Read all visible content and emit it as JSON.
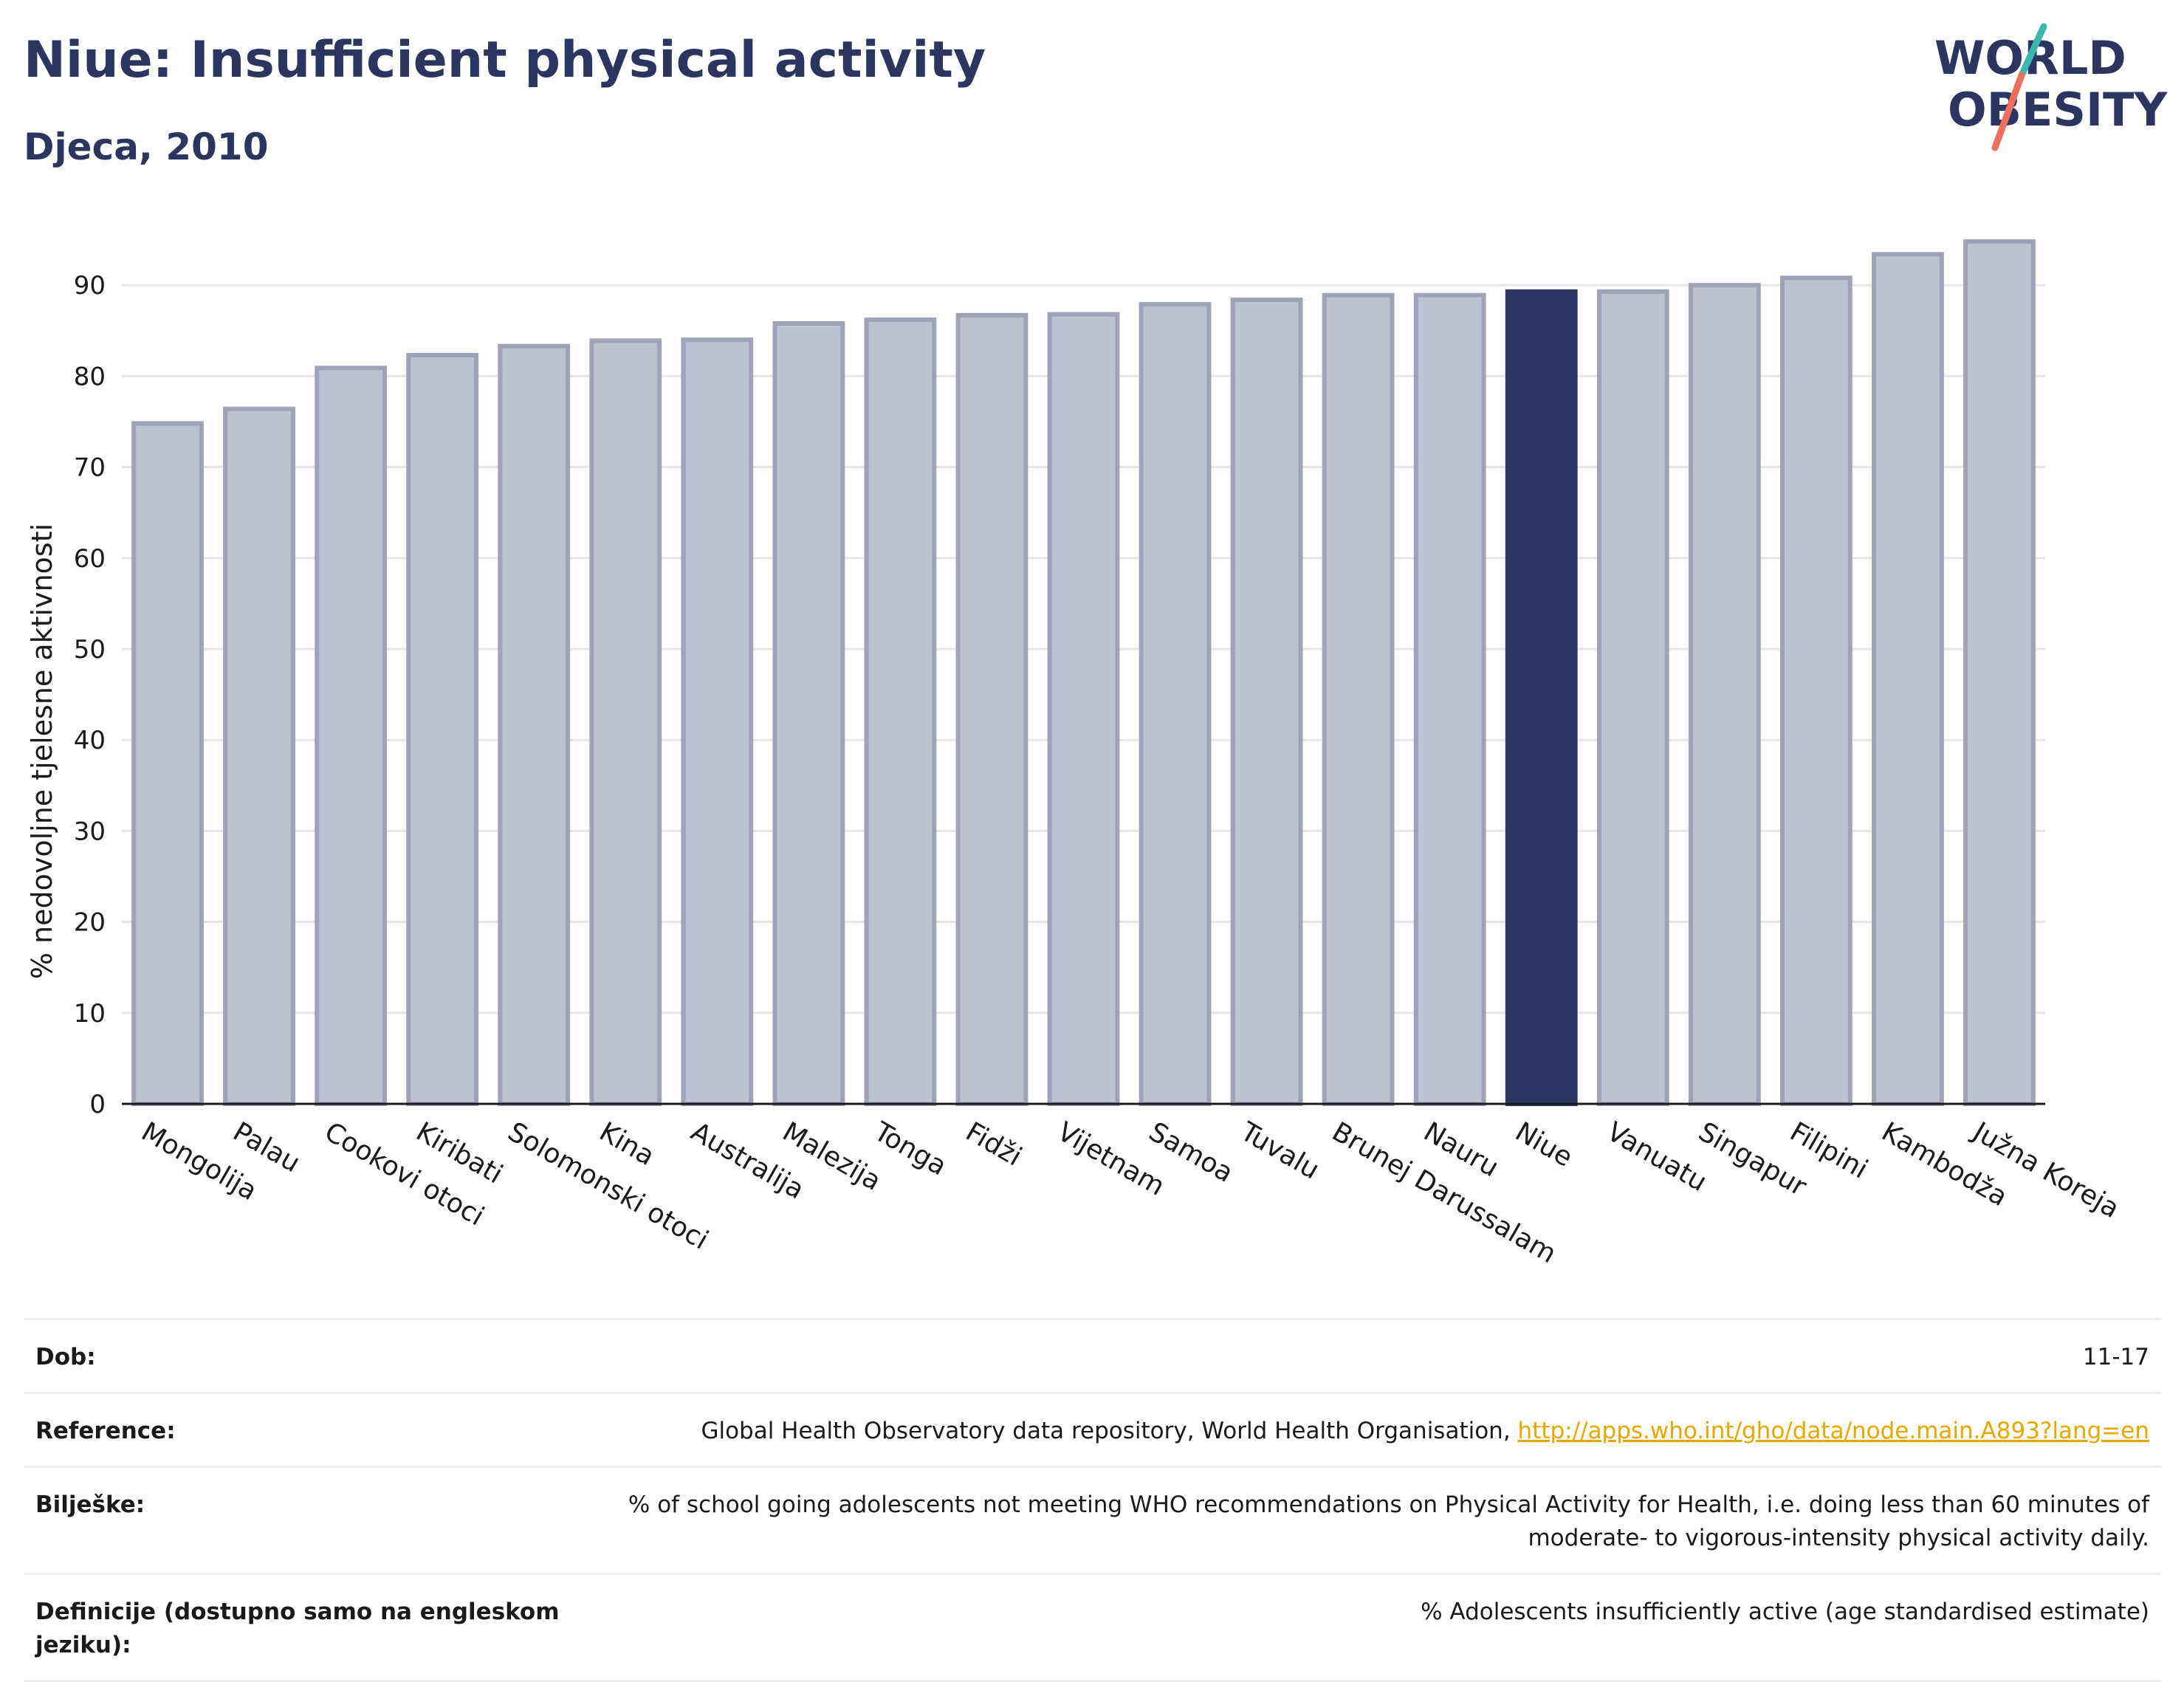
{
  "header": {
    "title": "Niue: Insufficient physical activity",
    "subtitle": "Djeca, 2010"
  },
  "logo": {
    "line1": "WORLD",
    "line2": "OBESITY",
    "icon": "world-obesity-logo"
  },
  "colors": {
    "title": "#2b355f",
    "bar_default": "#bec2cf",
    "bar_default_stroke": "#9ea3b8",
    "bar_highlight": "#2b355f",
    "logo_teal": "#3ab8b0",
    "logo_coral": "#ef6f5e",
    "link": "#e6a800"
  },
  "chart_data": {
    "type": "bar",
    "title": "Niue: Insufficient physical activity",
    "subtitle": "Djeca, 2010",
    "ylabel": "% nedovoljne tjelesne aktivnosti",
    "xlabel": "",
    "ylim": [
      0,
      97
    ],
    "yticks": [
      0,
      10,
      20,
      30,
      40,
      50,
      60,
      70,
      80,
      90
    ],
    "grid": true,
    "highlight": "Niue",
    "categories": [
      "Mongolija",
      "Palau",
      "Cookovi otoci",
      "Kiribati",
      "Solomonski otoci",
      "Kina",
      "Australija",
      "Malezija",
      "Tonga",
      "Fidži",
      "Vijetnam",
      "Samoa",
      "Tuvalu",
      "Brunej Darussalam",
      "Nauru",
      "Niue",
      "Vanuatu",
      "Singapur",
      "Filipini",
      "Kambodža",
      "Južna Koreja"
    ],
    "values": [
      74.8,
      76.4,
      80.9,
      82.3,
      83.3,
      83.9,
      84.0,
      85.8,
      86.2,
      86.7,
      86.8,
      87.9,
      88.4,
      88.9,
      88.9,
      89.3,
      89.3,
      90.0,
      90.8,
      93.4,
      94.8
    ]
  },
  "info": [
    {
      "label": "Dob:",
      "value": "11-17"
    },
    {
      "label": "Reference:",
      "value": "Global Health Observatory data repository, World Health Organisation, ",
      "link": "http://apps.who.int/gho/data/node.main.A893?lang=en"
    },
    {
      "label": "Bilješke:",
      "value": "% of school going adolescents not meeting WHO recommendations on Physical Activity for Health, i.e. doing less than 60 minutes of moderate- to vigorous-intensity physical activity daily."
    },
    {
      "label": "Definicije (dostupno samo na engleskom jeziku):",
      "value": "% Adolescents insufficiently active (age standardised estimate)"
    }
  ]
}
